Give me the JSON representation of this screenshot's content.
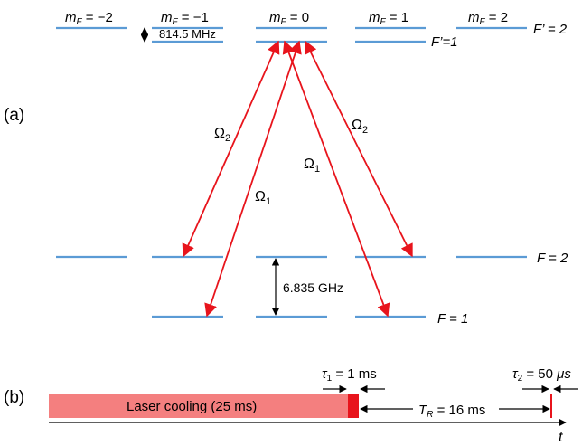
{
  "panel_a": {
    "label": "(a)",
    "columns": [
      {
        "m": "m",
        "sub": "F",
        "eq": " = −2"
      },
      {
        "m": "m",
        "sub": "F",
        "eq": " = −1"
      },
      {
        "m": "m",
        "sub": "F",
        "eq": " = 0"
      },
      {
        "m": "m",
        "sub": "F",
        "eq": " = 1"
      },
      {
        "m": "m",
        "sub": "F",
        "eq": " = 2"
      }
    ],
    "excited_splitting": "814.5 MHz",
    "ground_splitting": "6.835 GHz",
    "levels": {
      "f_prime_2": "F’ = 2",
      "f_prime_1": "F’=1",
      "f_2": "F = 2",
      "f_1": "F = 1"
    },
    "couplings": {
      "omega": "Ω",
      "sub_1": "1",
      "sub_2": "2"
    }
  },
  "panel_b": {
    "label": "(b)",
    "laser_cooling": "Laser cooling (25 ms)",
    "tau1": {
      "sym": "τ",
      "sub": "1",
      "val": " = 1 ms"
    },
    "tau2": {
      "sym": "τ",
      "sub": "2",
      "val": " = 50 ",
      "unit": "μs"
    },
    "tr": {
      "sym": "T",
      "sub": "R",
      "val": " = 16 ms"
    },
    "time_axis": "t"
  },
  "colors": {
    "level": "#5b9bd5",
    "transition": "#e8141c",
    "cooling_fill": "#f47f7f",
    "pulse": "#e8141c"
  }
}
